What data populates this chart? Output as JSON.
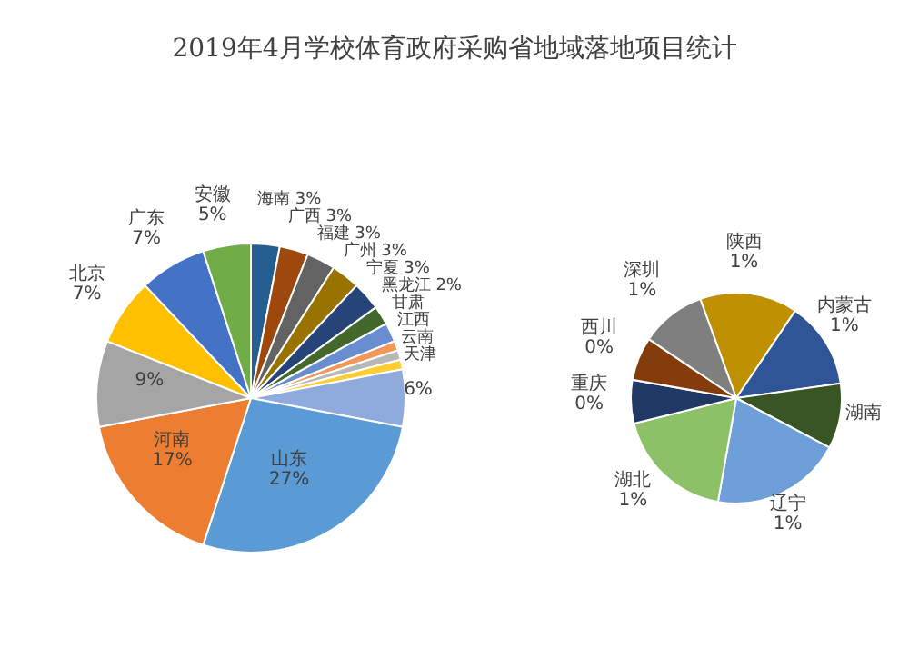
{
  "chart_data": [
    {
      "type": "pie",
      "title": "2019年4月学校体育政府采购省地域落地项目统计",
      "categories": [
        "海南",
        "广西",
        "福建",
        "广州",
        "宁夏",
        "黑龙江",
        "甘肃",
        "江西",
        "云南",
        "天津",
        null,
        "山东",
        "河南",
        null,
        "北京",
        "广东",
        "安徽"
      ],
      "values": [
        3,
        3,
        3,
        3,
        3,
        2,
        2,
        1,
        1,
        1,
        6,
        27,
        17,
        9,
        7,
        7,
        5
      ],
      "value_labels": [
        "3%",
        "3%",
        "3%",
        "3%",
        "3%",
        "2%",
        null,
        null,
        null,
        null,
        "6%",
        "27%",
        "17%",
        "9%",
        "7%",
        "7%",
        "5%"
      ],
      "colors": [
        "#255e91",
        "#9e480e",
        "#636363",
        "#997300",
        "#264478",
        "#43682b",
        "#698ed0",
        "#f1975a",
        "#b7b7b7",
        "#ffcd33",
        "#8faadc",
        "#5b9bd5",
        "#ed7d31",
        "#a5a5a5",
        "#ffc000",
        "#4472c4",
        "#70ad47"
      ]
    },
    {
      "type": "pie",
      "categories": [
        "陕西",
        "内蒙古",
        "湖南",
        "辽宁",
        "湖北",
        "重庆",
        "西川",
        "深圳"
      ],
      "values": [
        0.9,
        0.8,
        0.6,
        1.2,
        1.1,
        0.4,
        0.4,
        0.6
      ],
      "value_labels": [
        "1%",
        "1%",
        null,
        "1%",
        "1%",
        "0%",
        "0%",
        "1%"
      ],
      "colors": [
        "#bf9000",
        "#2f5597",
        "#375623",
        "#6f9fd8",
        "#8cc168",
        "#1f3864",
        "#843c0c",
        "#7f7f7f"
      ]
    }
  ]
}
